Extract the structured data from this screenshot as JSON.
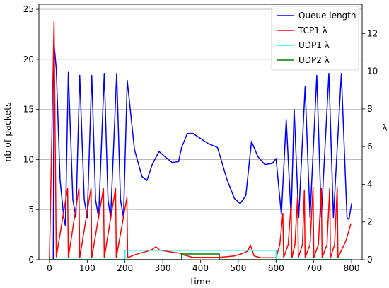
{
  "chart_data": {
    "type": "line",
    "xlabel": "time",
    "ylabel_left": "nb of packets",
    "ylabel_right": "λ",
    "xlim": [
      -28,
      828
    ],
    "ylim_left": [
      0,
      25.5
    ],
    "ylim_right": [
      0,
      13.55
    ],
    "x_ticks": [
      0,
      100,
      200,
      300,
      400,
      500,
      600,
      700,
      800
    ],
    "y_ticks_left": [
      0,
      5,
      10,
      15,
      20,
      25
    ],
    "y_ticks_right": [
      0,
      2,
      4,
      6,
      8,
      10,
      12
    ],
    "grid": "horizontal",
    "legend_position": "top-right",
    "series": [
      {
        "name": "Queue length",
        "axis": "left",
        "color": "#0000ff",
        "style": "envelope",
        "keypoints": [
          [
            10,
            0
          ],
          [
            12,
            21.6
          ],
          [
            18,
            19
          ],
          [
            28,
            8
          ],
          [
            38,
            4.2
          ],
          [
            42,
            3.4
          ],
          [
            50,
            18.7
          ],
          [
            62,
            6
          ],
          [
            70,
            4.2
          ],
          [
            80,
            18.4
          ],
          [
            92,
            6
          ],
          [
            100,
            4.2
          ],
          [
            112,
            18.4
          ],
          [
            122,
            6
          ],
          [
            130,
            4.2
          ],
          [
            145,
            18.6
          ],
          [
            155,
            6
          ],
          [
            162,
            4.2
          ],
          [
            178,
            18.6
          ],
          [
            188,
            6
          ],
          [
            196,
            4.2
          ],
          [
            206,
            17.9
          ],
          [
            225,
            11
          ],
          [
            245,
            8.3
          ],
          [
            258,
            7.9
          ],
          [
            272,
            9.5
          ],
          [
            290,
            10.8
          ],
          [
            305,
            10.3
          ],
          [
            325,
            9.7
          ],
          [
            342,
            9.8
          ],
          [
            350,
            11.2
          ],
          [
            365,
            12.6
          ],
          [
            380,
            12.6
          ],
          [
            400,
            12.1
          ],
          [
            420,
            11.6
          ],
          [
            445,
            11.2
          ],
          [
            470,
            8
          ],
          [
            490,
            6.1
          ],
          [
            505,
            5.6
          ],
          [
            520,
            6.4
          ],
          [
            535,
            11.8
          ],
          [
            552,
            10.3
          ],
          [
            570,
            9.5
          ],
          [
            590,
            9.6
          ],
          [
            600,
            10.1
          ],
          [
            614,
            4.5
          ],
          [
            627,
            14
          ],
          [
            640,
            4.2
          ],
          [
            648,
            15
          ],
          [
            660,
            4.2
          ],
          [
            677,
            17.3
          ],
          [
            690,
            4.2
          ],
          [
            708,
            18.4
          ],
          [
            720,
            4.2
          ],
          [
            740,
            18.6
          ],
          [
            752,
            4.2
          ],
          [
            773,
            18.6
          ],
          [
            788,
            4.2
          ],
          [
            793,
            4
          ],
          [
            800,
            5.6
          ]
        ]
      },
      {
        "name": "TCP1 λ",
        "axis": "right",
        "color": "#ff0000",
        "style": "envelope",
        "keypoints": [
          [
            0,
            0
          ],
          [
            12,
            12.65
          ],
          [
            18,
            0.15
          ],
          [
            48,
            3.8
          ],
          [
            50,
            0.1
          ],
          [
            78,
            3.8
          ],
          [
            80,
            0.1
          ],
          [
            110,
            3.8
          ],
          [
            112,
            0.1
          ],
          [
            143,
            3.8
          ],
          [
            145,
            0.1
          ],
          [
            175,
            3.8
          ],
          [
            177,
            0.1
          ],
          [
            205,
            3.3
          ],
          [
            207,
            0.1
          ],
          [
            225,
            0.25
          ],
          [
            240,
            0.35
          ],
          [
            255,
            0.42
          ],
          [
            270,
            0.52
          ],
          [
            282,
            0.68
          ],
          [
            292,
            0.5
          ],
          [
            310,
            0.45
          ],
          [
            330,
            0.38
          ],
          [
            345,
            0.35
          ],
          [
            355,
            0.25
          ],
          [
            380,
            0.12
          ],
          [
            450,
            0.12
          ],
          [
            490,
            0.2
          ],
          [
            510,
            0.32
          ],
          [
            525,
            0.45
          ],
          [
            532,
            0.78
          ],
          [
            542,
            0.2
          ],
          [
            560,
            0.1
          ],
          [
            600,
            0.1
          ],
          [
            610,
            0.8
          ],
          [
            618,
            2.45
          ],
          [
            620,
            0.1
          ],
          [
            632,
            0.8
          ],
          [
            640,
            2.95
          ],
          [
            642,
            0.1
          ],
          [
            650,
            0.8
          ],
          [
            657,
            3.35
          ],
          [
            659,
            0.1
          ],
          [
            670,
            0.8
          ],
          [
            675,
            3.7
          ],
          [
            677,
            0.1
          ],
          [
            690,
            0.8
          ],
          [
            698,
            3.85
          ],
          [
            700,
            0.1
          ],
          [
            712,
            0.8
          ],
          [
            720,
            3.8
          ],
          [
            722,
            0.1
          ],
          [
            735,
            0.8
          ],
          [
            742,
            3.8
          ],
          [
            744,
            0.1
          ],
          [
            755,
            0.8
          ],
          [
            762,
            3.85
          ],
          [
            764,
            0.1
          ],
          [
            785,
            1.0
          ],
          [
            798,
            1.9
          ]
        ]
      },
      {
        "name": "UDP1 λ",
        "axis": "right",
        "color": "#00ffff",
        "style": "step",
        "keypoints": [
          [
            0,
            0
          ],
          [
            200,
            0
          ],
          [
            200,
            0.5
          ],
          [
            600,
            0.5
          ],
          [
            600,
            0
          ],
          [
            800,
            0
          ]
        ]
      },
      {
        "name": "UDP2 λ",
        "axis": "right",
        "color": "#008000",
        "style": "step",
        "keypoints": [
          [
            0,
            0
          ],
          [
            350,
            0
          ],
          [
            350,
            0.3
          ],
          [
            450,
            0.3
          ],
          [
            450,
            0
          ],
          [
            800,
            0
          ]
        ]
      }
    ]
  }
}
